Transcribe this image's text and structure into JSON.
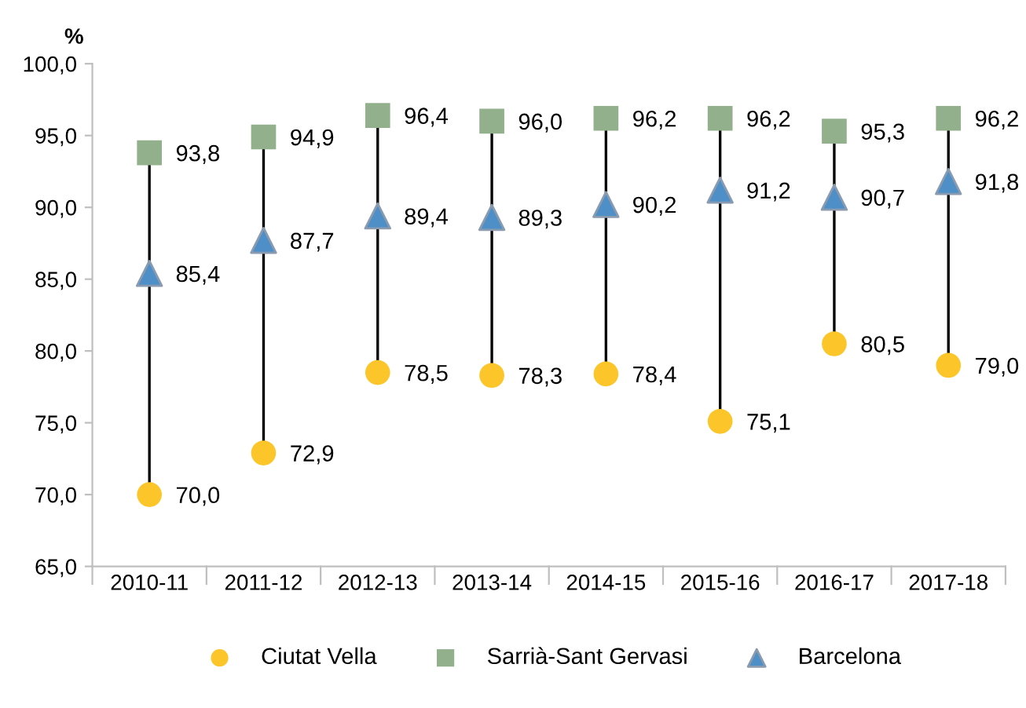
{
  "chart_data": {
    "type": "scatter",
    "ylabel": "%",
    "categories": [
      "2010-11",
      "2011-12",
      "2012-13",
      "2013-14",
      "2014-15",
      "2015-16",
      "2016-17",
      "2017-18"
    ],
    "ylim": [
      65,
      100
    ],
    "yticks": [
      {
        "value": 65,
        "label": "65,0"
      },
      {
        "value": 70,
        "label": "70,0"
      },
      {
        "value": 75,
        "label": "75,0"
      },
      {
        "value": 80,
        "label": "80,0"
      },
      {
        "value": 85,
        "label": "85,0"
      },
      {
        "value": 90,
        "label": "90,0"
      },
      {
        "value": 95,
        "label": "95,0"
      },
      {
        "value": 100,
        "label": "100,0"
      }
    ],
    "series": [
      {
        "name": "Ciutat Vella",
        "color": "#fcc52a",
        "marker": "circle",
        "values": [
          70.0,
          72.9,
          78.5,
          78.3,
          78.4,
          75.1,
          80.5,
          79.0
        ],
        "value_labels": [
          "70,0",
          "72,9",
          "78,5",
          "78,3",
          "78,4",
          "75,1",
          "80,5",
          "79,0"
        ]
      },
      {
        "name": "Sarrià-Sant Gervasi",
        "color": "#92b08c",
        "marker": "square",
        "values": [
          93.8,
          94.9,
          96.4,
          96.0,
          96.2,
          96.2,
          95.3,
          96.2
        ],
        "value_labels": [
          "93,8",
          "94,9",
          "96,4",
          "96,0",
          "96,2",
          "96,2",
          "95,3",
          "96,2"
        ]
      },
      {
        "name": "Barcelona",
        "color": "#4f8fc8",
        "marker": "triangle",
        "values": [
          85.4,
          87.7,
          89.4,
          89.3,
          90.2,
          91.2,
          90.7,
          91.8
        ],
        "value_labels": [
          "85,4",
          "87,7",
          "89,4",
          "89,3",
          "90,2",
          "91,2",
          "90,7",
          "91,8"
        ]
      }
    ],
    "grid": false,
    "legend": "bottom"
  }
}
